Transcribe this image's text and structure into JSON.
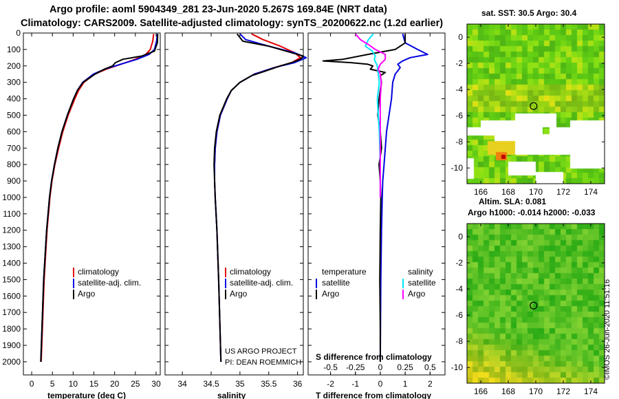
{
  "header": {
    "title_line1": "Argo profile: aoml 5904349_281 23-Jun-2020 5.267S 169.84E (NRT data)",
    "title_line2": "Climatology: CARS2009. Satellite-adjusted climatology: synTS_20200622.nc (1.2d earlier)"
  },
  "colors": {
    "climatology": "#e00000",
    "satellite": "#0000e0",
    "argo": "#000000",
    "argo_salinity": "#ff00ff",
    "satellite_salinity": "#00e5ff"
  },
  "chart_data": [
    {
      "type": "line",
      "title": "",
      "xlabel": "temperature (deg C)",
      "ylabel": "",
      "xlim": [
        -2,
        31
      ],
      "ylim": [
        2080,
        0
      ],
      "xticks": [
        0,
        5,
        10,
        15,
        20,
        25,
        30
      ],
      "xtick_labels": [
        "0",
        "5",
        "10",
        "15",
        "20",
        "25",
        "30"
      ],
      "yticks": [
        0,
        100,
        200,
        300,
        400,
        500,
        600,
        700,
        800,
        900,
        1000,
        1100,
        1200,
        1300,
        1400,
        1500,
        1600,
        1700,
        1800,
        1900,
        2000
      ],
      "ytick_labels": [
        "0",
        "100",
        "200",
        "300",
        "400",
        "500",
        "600",
        "700",
        "800",
        "900",
        "1000",
        "1100",
        "1200",
        "1300",
        "1400",
        "1500",
        "1600",
        "1700",
        "1800",
        "1900",
        "2000"
      ],
      "legend": [
        "climatology",
        "satellite-adj. clim.",
        "Argo"
      ],
      "legend_position": "lower-right",
      "series": [
        {
          "name": "climatology",
          "color": "#e00000",
          "depth": [
            5,
            50,
            100,
            130,
            160,
            190,
            220,
            250,
            300,
            350,
            400,
            500,
            600,
            700,
            800,
            900,
            1000,
            1200,
            1500,
            2000
          ],
          "values": [
            29.4,
            29.2,
            28.6,
            27.5,
            25.0,
            21.5,
            18.0,
            15.2,
            12.6,
            11.3,
            10.4,
            8.8,
            7.5,
            6.5,
            5.6,
            4.9,
            4.4,
            3.7,
            3.0,
            2.3
          ]
        },
        {
          "name": "satellite-adj. clim.",
          "color": "#0000e0",
          "depth": [
            5,
            50,
            100,
            130,
            160,
            190,
            220,
            250,
            300,
            350,
            400,
            500,
            600,
            700,
            800,
            900,
            1000,
            1200,
            1500,
            2000
          ],
          "values": [
            30.3,
            30.1,
            29.6,
            28.3,
            25.4,
            21.4,
            17.6,
            14.9,
            12.3,
            11.0,
            10.1,
            8.6,
            7.3,
            6.3,
            5.5,
            4.8,
            4.3,
            3.6,
            2.9,
            2.2
          ]
        },
        {
          "name": "Argo",
          "color": "#000000",
          "depth": [
            5,
            60,
            110,
            140,
            160,
            180,
            200,
            220,
            250,
            300,
            350,
            400,
            500,
            600,
            700,
            800,
            900,
            1000,
            1200,
            1500,
            2000
          ],
          "values": [
            30.4,
            30.3,
            29.6,
            26.5,
            22.0,
            20.2,
            19.5,
            17.5,
            15.3,
            12.4,
            11.0,
            10.1,
            8.6,
            7.3,
            6.3,
            5.5,
            4.8,
            4.3,
            3.6,
            2.9,
            2.2
          ]
        }
      ]
    },
    {
      "type": "line",
      "title": "",
      "xlabel": "salinity",
      "ylabel": "",
      "xlim": [
        33.7,
        36.1
      ],
      "ylim": [
        2080,
        0
      ],
      "xticks": [
        34,
        34.5,
        35,
        35.5,
        36
      ],
      "xtick_labels": [
        "34",
        "34.5",
        "35",
        "35.5",
        "36"
      ],
      "legend": [
        "climatology",
        "satellite-adj. clim.",
        "Argo"
      ],
      "legend_position": "lower-right",
      "annotations": [
        "US ARGO PROJECT",
        "PI: DEAN ROEMMICH"
      ],
      "series": [
        {
          "name": "climatology",
          "color": "#e00000",
          "depth": [
            5,
            40,
            80,
            120,
            150,
            180,
            210,
            250,
            300,
            350,
            400,
            500,
            600,
            700,
            800,
            900,
            1000,
            1200,
            1500,
            2000
          ],
          "values": [
            35.2,
            35.4,
            35.7,
            35.95,
            36.05,
            35.9,
            35.6,
            35.25,
            35.0,
            34.85,
            34.78,
            34.66,
            34.6,
            34.57,
            34.56,
            34.56,
            34.57,
            34.6,
            34.63,
            34.67
          ]
        },
        {
          "name": "satellite-adj. clim.",
          "color": "#0000e0",
          "depth": [
            5,
            40,
            80,
            120,
            150,
            180,
            210,
            250,
            300,
            350,
            400,
            500,
            600,
            700,
            800,
            900,
            1000,
            1200,
            1500,
            2000
          ],
          "values": [
            35.0,
            35.1,
            35.5,
            35.95,
            36.15,
            35.95,
            35.6,
            35.25,
            35.0,
            34.85,
            34.78,
            34.66,
            34.6,
            34.57,
            34.56,
            34.56,
            34.57,
            34.6,
            34.63,
            34.67
          ]
        },
        {
          "name": "Argo",
          "color": "#000000",
          "depth": [
            5,
            50,
            80,
            110,
            140,
            160,
            180,
            200,
            230,
            260,
            300,
            350,
            400,
            500,
            600,
            700,
            800,
            900,
            1000,
            1200,
            1500,
            2000
          ],
          "values": [
            34.95,
            35.05,
            35.5,
            35.8,
            36.1,
            36.05,
            35.9,
            35.7,
            35.45,
            35.2,
            35.0,
            34.85,
            34.77,
            34.65,
            34.59,
            34.56,
            34.55,
            34.56,
            34.57,
            34.6,
            34.63,
            34.67
          ]
        }
      ]
    },
    {
      "type": "line",
      "title": "",
      "xlabel": "T difference from climatology",
      "xlabel2": "S difference from climatology",
      "xlim": [
        -2.9,
        2.6
      ],
      "ylim": [
        2080,
        0
      ],
      "xticks": [
        -2,
        -1,
        0,
        1,
        2
      ],
      "xtick_labels": [
        "-2",
        "-1",
        "0",
        "1",
        "2"
      ],
      "s_ticks": [
        -0.5,
        -0.25,
        0,
        0.25,
        0.5
      ],
      "s_tick_labels": [
        "-0.5",
        "-0.25",
        "0",
        "0.25",
        "0.5"
      ],
      "legend_temperature_title": "temperature",
      "legend_salinity_title": "salinity",
      "legend": [
        "satellite",
        "Argo",
        "satellite",
        "Argo"
      ],
      "series": [
        {
          "name": "T satellite",
          "color": "#0000e0",
          "depth": [
            5,
            60,
            100,
            130,
            150,
            170,
            190,
            210,
            230,
            250,
            300,
            400,
            500,
            600,
            700,
            800,
            900,
            1000,
            1200,
            1500,
            2000
          ],
          "values": [
            0.9,
            1.0,
            1.5,
            1.9,
            1.2,
            0.9,
            0.7,
            0.8,
            0.7,
            0.6,
            0.5,
            0.45,
            0.35,
            0.25,
            0.2,
            0.15,
            0.1,
            0.08,
            0.05,
            0.02,
            0.0
          ]
        },
        {
          "name": "T Argo",
          "color": "#000000",
          "depth": [
            5,
            60,
            100,
            130,
            160,
            170,
            180,
            190,
            200,
            220,
            240,
            260,
            300,
            400,
            500,
            600,
            700,
            800,
            900,
            1000,
            1200,
            1500,
            1800,
            2000
          ],
          "values": [
            1.0,
            1.0,
            0.6,
            -0.5,
            -1.5,
            -2.3,
            -1.2,
            -0.5,
            -0.3,
            -0.4,
            0.2,
            0.0,
            0.05,
            -0.05,
            -0.1,
            0.0,
            0.05,
            -0.05,
            0.0,
            0.02,
            0.0,
            -0.02,
            0.0,
            0.0
          ]
        },
        {
          "name": "S satellite",
          "color": "#00e5ff",
          "depth": [
            5,
            40,
            80,
            110,
            140,
            160,
            200,
            250,
            300,
            400,
            500,
            600,
            800,
            1000
          ],
          "values": [
            -0.07,
            -0.12,
            -0.15,
            -0.08,
            -0.05,
            -0.06,
            -0.03,
            -0.02,
            -0.01,
            -0.03,
            -0.02,
            -0.01,
            0.0,
            0.0
          ]
        },
        {
          "name": "S Argo",
          "color": "#ff00ff",
          "depth": [
            5,
            40,
            70,
            100,
            130,
            160,
            190,
            220,
            250,
            300,
            400,
            500,
            700,
            900,
            1000
          ],
          "values": [
            -0.25,
            -0.2,
            -0.12,
            -0.05,
            0.05,
            0.05,
            0.0,
            -0.02,
            0.0,
            0.01,
            0.0,
            0.0,
            0.0,
            0.0,
            0.0
          ]
        }
      ]
    }
  ],
  "maps": {
    "sst": {
      "title": "sat. SST: 30.5 Argo: 30.4",
      "bottom_title": "Altim. SLA: 0.081",
      "xtick_labels": [
        "166",
        "168",
        "170",
        "172",
        "174"
      ],
      "ytick_labels": [
        "0",
        "-2",
        "-4",
        "-6",
        "-8",
        "-10"
      ],
      "lon_range": [
        165.0,
        175.0
      ],
      "lat_range": [
        -11.2,
        1.0
      ]
    },
    "sla": {
      "title": "Argo h1000: -0.014 h2000: -0.033",
      "xtick_labels": [
        "166",
        "168",
        "170",
        "172",
        "174"
      ],
      "ytick_labels": [
        "0",
        "-2",
        "-4",
        "-6",
        "-8",
        "-10"
      ],
      "lon_range": [
        165.0,
        175.0
      ],
      "lat_range": [
        -11.2,
        1.0
      ]
    },
    "float_position": {
      "lon": 169.84,
      "lat": -5.267
    }
  },
  "footer": {
    "stamp": "©IMOS 26-Jun-2020 11:51:16"
  }
}
